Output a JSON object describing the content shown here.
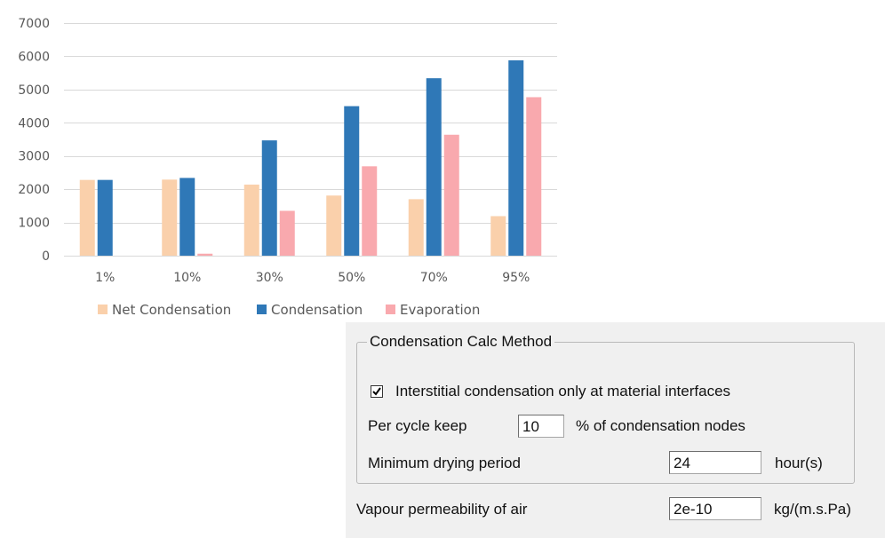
{
  "chart_data": {
    "type": "bar",
    "categories": [
      "1%",
      "10%",
      "30%",
      "50%",
      "70%",
      "95%"
    ],
    "series": [
      {
        "name": "Net Condensation",
        "color": "#fad0ab",
        "values": [
          2280,
          2290,
          2140,
          1810,
          1700,
          1190
        ]
      },
      {
        "name": "Condensation",
        "color": "#2f78b7",
        "values": [
          2280,
          2340,
          3470,
          4500,
          5340,
          5880
        ]
      },
      {
        "name": "Evaporation",
        "color": "#f9a9ae",
        "values": [
          0,
          60,
          1350,
          2690,
          3640,
          4770
        ]
      }
    ],
    "ylim": [
      0,
      7000
    ],
    "yticks": [
      0,
      1000,
      2000,
      3000,
      4000,
      5000,
      6000,
      7000
    ],
    "grid": true,
    "legend": "bottom"
  },
  "settings": {
    "group_title": "Condensation Calc Method",
    "interstitial_checkbox": {
      "label": "Interstitial condensation only at material interfaces",
      "checked": true
    },
    "per_cycle": {
      "label": "Per cycle keep",
      "value": "10",
      "unit": "% of condensation nodes"
    },
    "min_drying": {
      "label": "Minimum drying period",
      "value": "24",
      "unit": "hour(s)"
    },
    "vapour_permeability": {
      "label": "Vapour permeability of air",
      "value": "2e-10",
      "unit": "kg/(m.s.Pa)"
    }
  }
}
